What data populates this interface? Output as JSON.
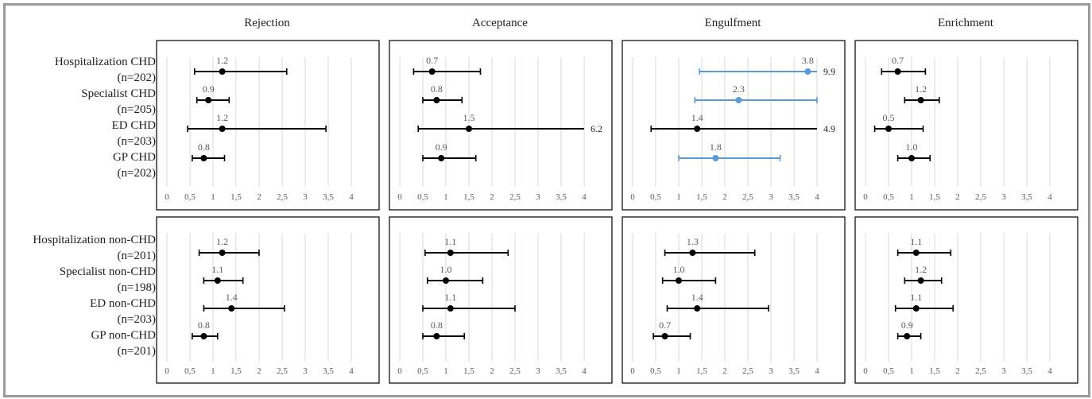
{
  "colors": {
    "black_series": "#000000",
    "blue_series": "#5b9bd5",
    "grid": "#d9d9d9",
    "frame": "#9a9a9a"
  },
  "column_titles": [
    "Rejection",
    "Acceptance",
    "Engulfment",
    "Enrichment"
  ],
  "row_labels": {
    "top": [
      {
        "name": "Hospitalization CHD",
        "n": "(n=202)"
      },
      {
        "name": "Specialist CHD",
        "n": "(n=205)"
      },
      {
        "name": "ED CHD",
        "n": "(n=203)"
      },
      {
        "name": "GP CHD",
        "n": "(n=202)"
      }
    ],
    "bottom": [
      {
        "name": "Hospitalization non-CHD",
        "n": "(n=201)"
      },
      {
        "name": "Specialist non-CHD",
        "n": "(n=198)"
      },
      {
        "name": "ED non-CHD",
        "n": "(n=203)"
      },
      {
        "name": "GP non-CHD",
        "n": "(n=201)"
      }
    ]
  },
  "x_ticks": [
    "0",
    "0,5",
    "1",
    "1,5",
    "2",
    "2,5",
    "3",
    "3,5",
    "4"
  ],
  "chart_data": [
    {
      "type": "scatter",
      "row": "CHD",
      "panel": "Rejection",
      "xlim": [
        0,
        4
      ],
      "grid": "vertical",
      "points": [
        {
          "category": "Hospitalization CHD",
          "value": 1.2,
          "label": "1.2",
          "lower": 0.6,
          "upper": 2.6,
          "color": "black"
        },
        {
          "category": "Specialist CHD",
          "value": 0.9,
          "label": "0.9",
          "lower": 0.65,
          "upper": 1.35,
          "color": "black"
        },
        {
          "category": "ED CHD",
          "value": 1.2,
          "label": "1.2",
          "lower": 0.45,
          "upper": 3.45,
          "color": "black"
        },
        {
          "category": "GP CHD",
          "value": 0.8,
          "label": "0.8",
          "lower": 0.55,
          "upper": 1.25,
          "color": "black"
        }
      ]
    },
    {
      "type": "scatter",
      "row": "CHD",
      "panel": "Acceptance",
      "xlim": [
        0,
        4
      ],
      "grid": "vertical",
      "points": [
        {
          "category": "Hospitalization CHD",
          "value": 0.7,
          "label": "0.7",
          "lower": 0.3,
          "upper": 1.75,
          "color": "black"
        },
        {
          "category": "Specialist CHD",
          "value": 0.8,
          "label": "0.8",
          "lower": 0.5,
          "upper": 1.35,
          "color": "black"
        },
        {
          "category": "ED CHD",
          "value": 1.5,
          "label": "1.5",
          "lower": 0.4,
          "upper": 6.2,
          "upper_label": "6.2",
          "color": "black"
        },
        {
          "category": "GP CHD",
          "value": 0.9,
          "label": "0.9",
          "lower": 0.5,
          "upper": 1.65,
          "color": "black"
        }
      ]
    },
    {
      "type": "scatter",
      "row": "CHD",
      "panel": "Engulfment",
      "xlim": [
        0,
        4
      ],
      "grid": "vertical",
      "points": [
        {
          "category": "Hospitalization CHD",
          "value": 3.8,
          "label": "3.8",
          "lower": 1.45,
          "upper": 9.9,
          "upper_label": "9.9",
          "color": "blue"
        },
        {
          "category": "Specialist CHD",
          "value": 2.3,
          "label": "2.3",
          "lower": 1.35,
          "upper": 4.0,
          "color": "blue"
        },
        {
          "category": "ED CHD",
          "value": 1.4,
          "label": "1.4",
          "lower": 0.4,
          "upper": 4.9,
          "upper_label": "4.9",
          "color": "black"
        },
        {
          "category": "GP CHD",
          "value": 1.8,
          "label": "1.8",
          "lower": 1.0,
          "upper": 3.2,
          "color": "blue"
        }
      ]
    },
    {
      "type": "scatter",
      "row": "CHD",
      "panel": "Enrichment",
      "xlim": [
        0,
        4
      ],
      "grid": "vertical",
      "points": [
        {
          "category": "Hospitalization CHD",
          "value": 0.7,
          "label": "0.7",
          "lower": 0.35,
          "upper": 1.3,
          "color": "black"
        },
        {
          "category": "Specialist CHD",
          "value": 1.2,
          "label": "1.2",
          "lower": 0.85,
          "upper": 1.6,
          "color": "black"
        },
        {
          "category": "ED CHD",
          "value": 0.5,
          "label": "0.5",
          "lower": 0.2,
          "upper": 1.25,
          "color": "black"
        },
        {
          "category": "GP CHD",
          "value": 1.0,
          "label": "1.0",
          "lower": 0.7,
          "upper": 1.4,
          "color": "black"
        }
      ]
    },
    {
      "type": "scatter",
      "row": "non-CHD",
      "panel": "Rejection",
      "xlim": [
        0,
        4
      ],
      "grid": "vertical",
      "points": [
        {
          "category": "Hospitalization non-CHD",
          "value": 1.2,
          "label": "1.2",
          "lower": 0.7,
          "upper": 2.0,
          "color": "black"
        },
        {
          "category": "Specialist non-CHD",
          "value": 1.1,
          "label": "1.1",
          "lower": 0.8,
          "upper": 1.65,
          "color": "black"
        },
        {
          "category": "ED non-CHD",
          "value": 1.4,
          "label": "1.4",
          "lower": 0.8,
          "upper": 2.55,
          "color": "black"
        },
        {
          "category": "GP non-CHD",
          "value": 0.8,
          "label": "0.8",
          "lower": 0.55,
          "upper": 1.1,
          "color": "black"
        }
      ]
    },
    {
      "type": "scatter",
      "row": "non-CHD",
      "panel": "Acceptance",
      "xlim": [
        0,
        4
      ],
      "grid": "vertical",
      "points": [
        {
          "category": "Hospitalization non-CHD",
          "value": 1.1,
          "label": "1.1",
          "lower": 0.55,
          "upper": 2.35,
          "color": "black"
        },
        {
          "category": "Specialist non-CHD",
          "value": 1.0,
          "label": "1.0",
          "lower": 0.6,
          "upper": 1.8,
          "color": "black"
        },
        {
          "category": "ED non-CHD",
          "value": 1.1,
          "label": "1.1",
          "lower": 0.5,
          "upper": 2.5,
          "color": "black"
        },
        {
          "category": "GP non-CHD",
          "value": 0.8,
          "label": "0.8",
          "lower": 0.5,
          "upper": 1.4,
          "color": "black"
        }
      ]
    },
    {
      "type": "scatter",
      "row": "non-CHD",
      "panel": "Engulfment",
      "xlim": [
        0,
        4
      ],
      "grid": "vertical",
      "points": [
        {
          "category": "Hospitalization non-CHD",
          "value": 1.3,
          "label": "1.3",
          "lower": 0.7,
          "upper": 2.65,
          "color": "black"
        },
        {
          "category": "Specialist non-CHD",
          "value": 1.0,
          "label": "1.0",
          "lower": 0.65,
          "upper": 1.8,
          "color": "black"
        },
        {
          "category": "ED non-CHD",
          "value": 1.4,
          "label": "1.4",
          "lower": 0.75,
          "upper": 2.95,
          "color": "black"
        },
        {
          "category": "GP non-CHD",
          "value": 0.7,
          "label": "0.7",
          "lower": 0.45,
          "upper": 1.25,
          "color": "black"
        }
      ]
    },
    {
      "type": "scatter",
      "row": "non-CHD",
      "panel": "Enrichment",
      "xlim": [
        0,
        4
      ],
      "grid": "vertical",
      "points": [
        {
          "category": "Hospitalization non-CHD",
          "value": 1.1,
          "label": "1.1",
          "lower": 0.7,
          "upper": 1.85,
          "color": "black"
        },
        {
          "category": "Specialist non-CHD",
          "value": 1.2,
          "label": "1.2",
          "lower": 0.85,
          "upper": 1.65,
          "color": "black"
        },
        {
          "category": "ED non-CHD",
          "value": 1.1,
          "label": "1.1",
          "lower": 0.65,
          "upper": 1.9,
          "color": "black"
        },
        {
          "category": "GP non-CHD",
          "value": 0.9,
          "label": "0.9",
          "lower": 0.7,
          "upper": 1.2,
          "color": "black"
        }
      ]
    }
  ]
}
